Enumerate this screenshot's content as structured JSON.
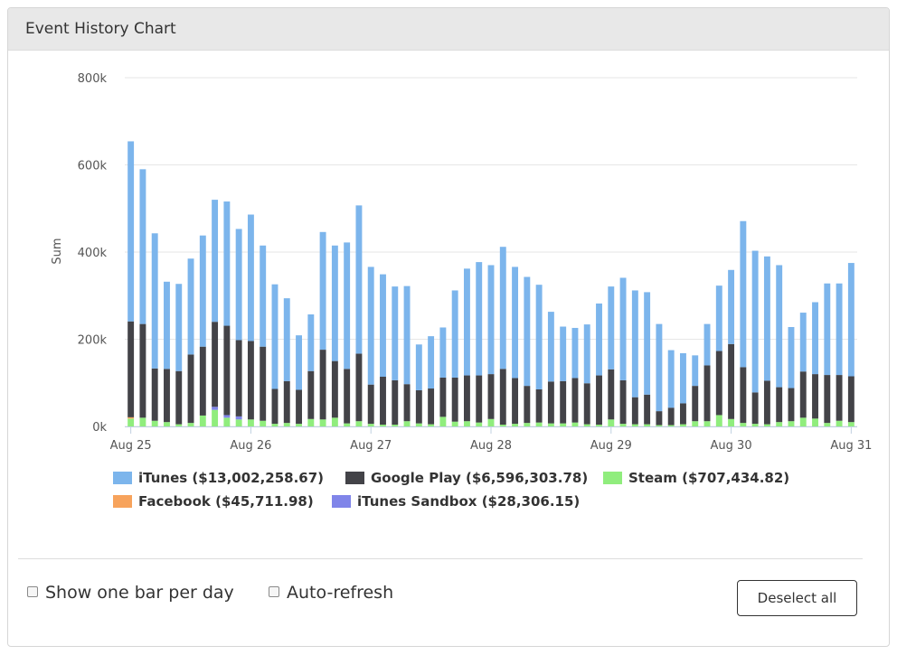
{
  "panel": {
    "title": "Event History Chart"
  },
  "controls": {
    "one_bar_label": "Show one bar per day",
    "auto_refresh_label": "Auto-refresh",
    "deselect_label": "Deselect all"
  },
  "chart_data": {
    "type": "bar",
    "stacked": true,
    "ylabel": "Sum",
    "xlabel": "",
    "ylim": [
      0,
      800000
    ],
    "yticks": [
      0,
      200000,
      400000,
      600000,
      800000
    ],
    "ytick_labels": [
      "0k",
      "200k",
      "400k",
      "600k",
      "800k"
    ],
    "xtick_labels": [
      "Aug 25",
      "Aug 26",
      "Aug 27",
      "Aug 28",
      "Aug 29",
      "Aug 30",
      "Aug 31"
    ],
    "grid": true,
    "legend_position": "bottom",
    "bar_count": 61,
    "series": [
      {
        "name": "iTunes",
        "legend_label": "iTunes ($13,002,258.67)",
        "color": "#7cb5ec",
        "values": [
          413000,
          355000,
          310000,
          200000,
          200000,
          220000,
          255000,
          280000,
          285000,
          255000,
          290000,
          232000,
          240000,
          190000,
          125000,
          130000,
          270000,
          265000,
          290000,
          340000,
          270000,
          235000,
          215000,
          225000,
          105000,
          120000,
          115000,
          200000,
          245000,
          260000,
          250000,
          280000,
          255000,
          250000,
          240000,
          160000,
          125000,
          115000,
          135000,
          165000,
          190000,
          235000,
          245000,
          235000,
          200000,
          132000,
          115000,
          70000,
          95000,
          150000,
          170000,
          335000,
          325000,
          285000,
          280000,
          140000,
          135000,
          165000,
          210000,
          210000,
          260000
        ]
      },
      {
        "name": "Google Play",
        "legend_label": "Google Play ($6,596,303.78)",
        "color": "#434348",
        "values": [
          220000,
          215000,
          120000,
          122000,
          122000,
          157000,
          158000,
          195000,
          205000,
          175000,
          180000,
          170000,
          80000,
          96000,
          78000,
          110000,
          160000,
          130000,
          125000,
          155000,
          90000,
          110000,
          102000,
          85000,
          76000,
          82000,
          90000,
          101000,
          105000,
          108000,
          103000,
          128000,
          105000,
          85000,
          76000,
          96000,
          97000,
          102000,
          94000,
          113000,
          115000,
          100000,
          62000,
          68000,
          32000,
          40000,
          48000,
          81000,
          128000,
          147000,
          172000,
          128000,
          72000,
          100000,
          80000,
          76000,
          106000,
          102000,
          110000,
          105000,
          105000
        ]
      },
      {
        "name": "Steam",
        "legend_label": "Steam ($707,434.82)",
        "color": "#90ed7d",
        "values": [
          18000,
          20000,
          13000,
          10000,
          5000,
          8000,
          25000,
          38000,
          20000,
          16000,
          16000,
          13000,
          6000,
          8000,
          6000,
          17000,
          16000,
          20000,
          7000,
          12000,
          6000,
          4000,
          4000,
          12000,
          7000,
          5000,
          22000,
          11000,
          12000,
          9000,
          17000,
          4000,
          6000,
          8000,
          9000,
          7000,
          7000,
          9000,
          5000,
          4000,
          16000,
          6000,
          5000,
          5000,
          3000,
          3000,
          5000,
          12000,
          12000,
          26000,
          17000,
          8000,
          6000,
          5000,
          10000,
          12000,
          20000,
          18000,
          8000,
          13000,
          10000
        ]
      },
      {
        "name": "Facebook",
        "legend_label": "Facebook ($45,711.98)",
        "color": "#f7a35c",
        "values": [
          3000,
          0,
          0,
          0,
          0,
          0,
          0,
          0,
          0,
          0,
          0,
          0,
          0,
          0,
          0,
          0,
          0,
          0,
          0,
          0,
          0,
          0,
          0,
          0,
          0,
          0,
          0,
          0,
          0,
          0,
          0,
          0,
          0,
          0,
          0,
          0,
          0,
          0,
          0,
          0,
          0,
          0,
          0,
          0,
          0,
          0,
          0,
          0,
          0,
          0,
          0,
          0,
          0,
          0,
          0,
          0,
          0,
          0,
          0,
          0,
          0
        ]
      },
      {
        "name": "iTunes Sandbox",
        "legend_label": "iTunes Sandbox ($28,306.15)",
        "color": "#8085e9",
        "values": [
          0,
          0,
          0,
          0,
          0,
          0,
          0,
          7000,
          6000,
          7000,
          0,
          0,
          0,
          0,
          0,
          0,
          0,
          0,
          0,
          0,
          0,
          0,
          0,
          0,
          0,
          0,
          0,
          0,
          0,
          0,
          0,
          0,
          0,
          0,
          0,
          0,
          0,
          0,
          0,
          0,
          0,
          0,
          0,
          0,
          0,
          0,
          0,
          0,
          0,
          0,
          0,
          0,
          0,
          0,
          0,
          0,
          0,
          0,
          0,
          0,
          0
        ]
      }
    ]
  }
}
